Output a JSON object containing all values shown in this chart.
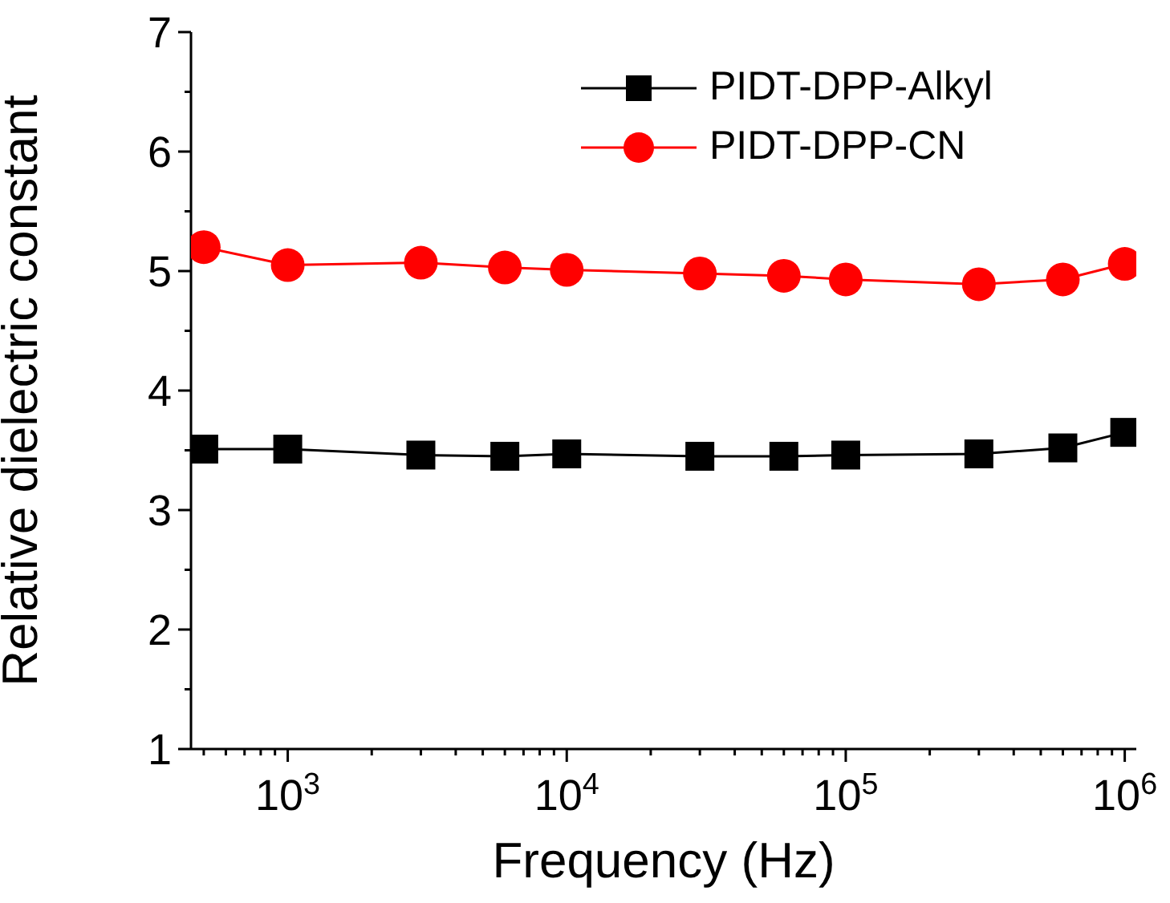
{
  "chart_data": {
    "type": "line",
    "xlabel": "Frequency (Hz)",
    "ylabel": "Relative dielectric constant",
    "log": "x",
    "legend": "top right",
    "line_style": "solid",
    "x": [
      500,
      1000,
      3000,
      6000,
      10000,
      30000,
      60000,
      100000,
      300000,
      600000,
      1000000
    ],
    "xlim": [
      450,
      1100000
    ],
    "xticks": [
      {
        "value": 500,
        "label": null
      },
      {
        "value": 600,
        "label": null
      },
      {
        "value": 700,
        "label": null
      },
      {
        "value": 800,
        "label": null
      },
      {
        "value": 900,
        "label": null
      },
      {
        "value": 1000,
        "label": "10$^{3}$"
      },
      {
        "value": 2000,
        "label": null
      },
      {
        "value": 3000,
        "label": null
      },
      {
        "value": 4000,
        "label": null
      },
      {
        "value": 5000,
        "label": null
      },
      {
        "value": 6000,
        "label": null
      },
      {
        "value": 7000,
        "label": null
      },
      {
        "value": 8000,
        "label": null
      },
      {
        "value": 9000,
        "label": null
      },
      {
        "value": 10000,
        "label": "10$^{4}$"
      },
      {
        "value": 20000,
        "label": null
      },
      {
        "value": 30000,
        "label": null
      },
      {
        "value": 40000,
        "label": null
      },
      {
        "value": 50000,
        "label": null
      },
      {
        "value": 60000,
        "label": null
      },
      {
        "value": 70000,
        "label": null
      },
      {
        "value": 80000,
        "label": null
      },
      {
        "value": 90000,
        "label": null
      },
      {
        "value": 100000,
        "label": "10$^{5}$"
      },
      {
        "value": 200000,
        "label": null
      },
      {
        "value": 300000,
        "label": null
      },
      {
        "value": 400000,
        "label": null
      },
      {
        "value": 500000,
        "label": null
      },
      {
        "value": 600000,
        "label": null
      },
      {
        "value": 700000,
        "label": null
      },
      {
        "value": 800000,
        "label": null
      },
      {
        "value": 900000,
        "label": null
      },
      {
        "value": 1000000,
        "label": "10$^{6}$"
      }
    ],
    "ylim": [
      1,
      7
    ],
    "yticks": [
      1,
      {
        "value": 1.5,
        "label": null
      },
      2,
      {
        "value": 2.5,
        "label": null
      },
      3,
      {
        "value": 3.5,
        "label": null
      },
      4,
      {
        "value": 4.5,
        "label": null
      },
      5,
      {
        "value": 5.5,
        "label": null
      },
      6,
      {
        "value": 6.5,
        "label": null
      },
      7
    ],
    "series": [
      {
        "name": "PIDT-DPP-Alkyl",
        "color": "#000000",
        "marker": "square",
        "values": [
          3.51,
          3.51,
          3.46,
          3.45,
          3.47,
          3.45,
          3.45,
          3.46,
          3.47,
          3.52,
          3.65
        ]
      },
      {
        "name": "PIDT-DPP-CN",
        "color": "#ff0000",
        "marker": "circle",
        "values": [
          5.2,
          5.05,
          5.07,
          5.03,
          5.01,
          4.98,
          4.96,
          4.93,
          4.89,
          4.93,
          5.06
        ]
      }
    ]
  }
}
